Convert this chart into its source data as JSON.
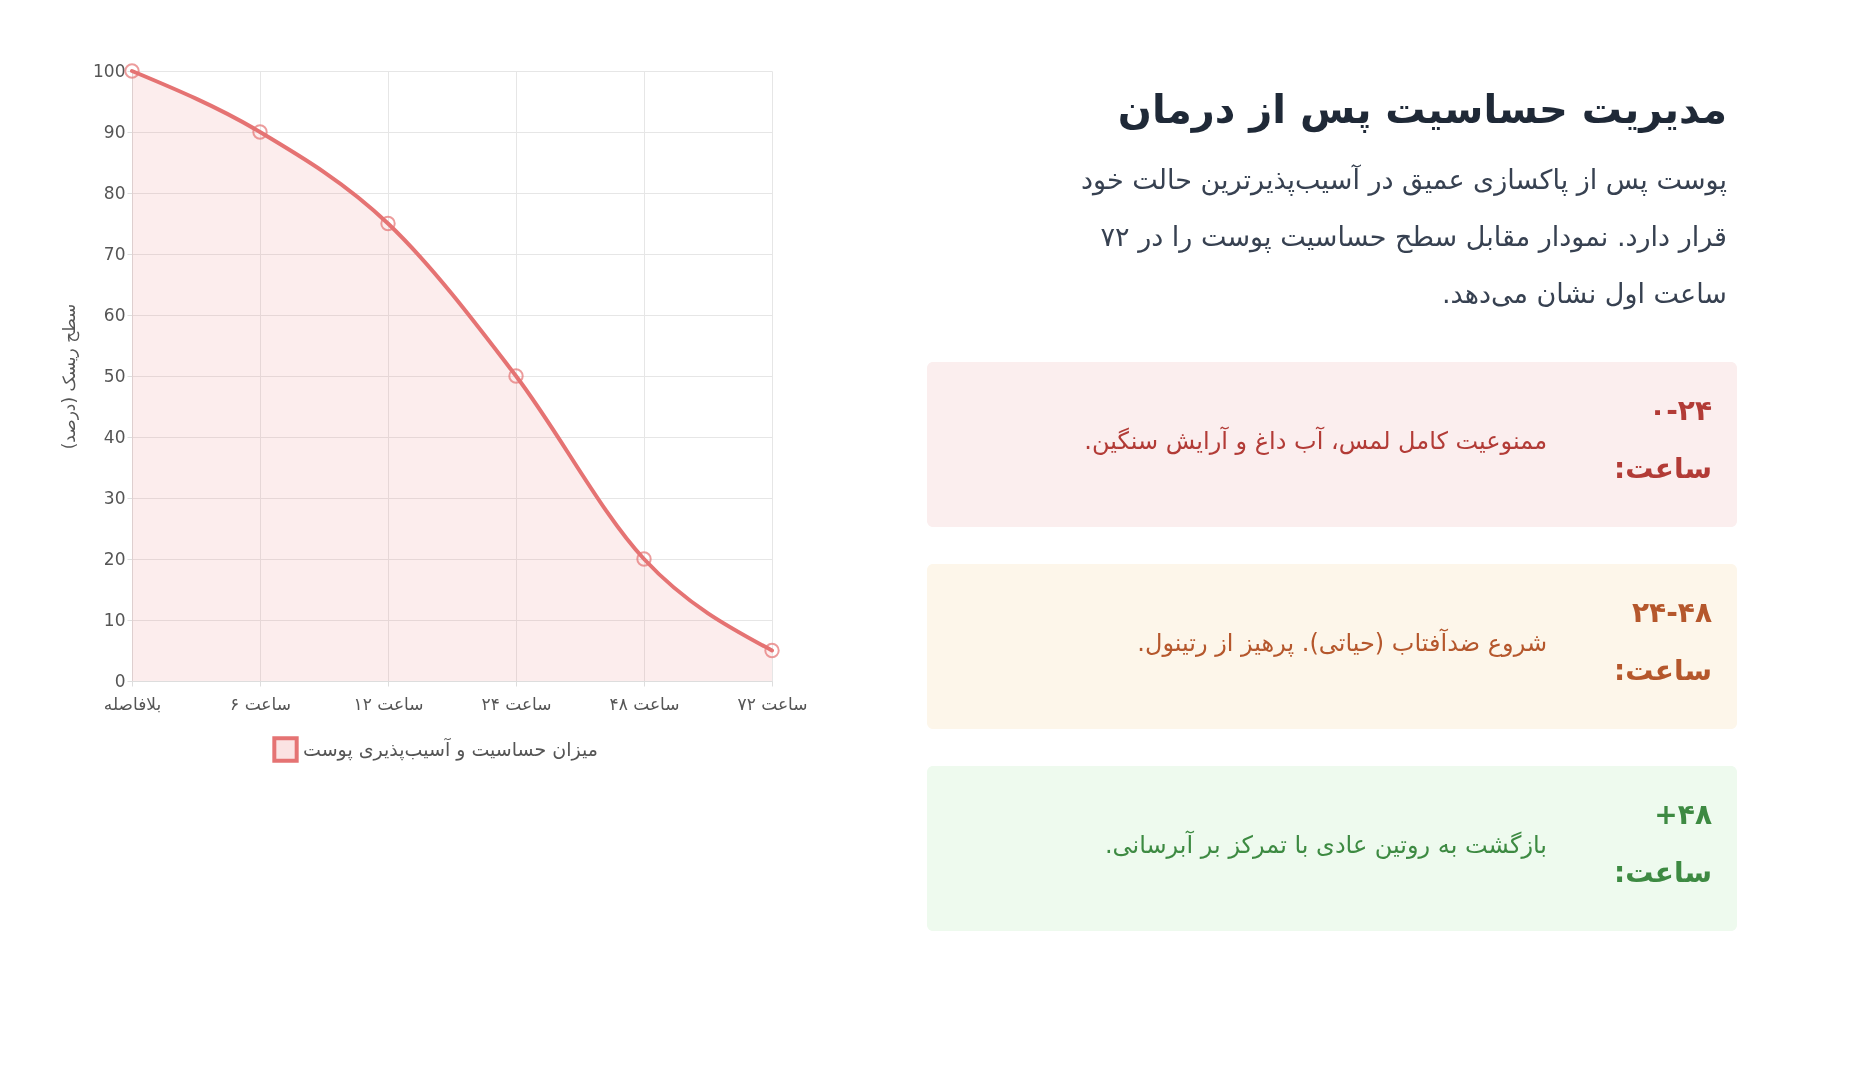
{
  "chart_data": [
    {
      "type": "area",
      "ylabel": "سطح ریسک (درصد)",
      "categories": [
        "بلافاصله",
        "۶ ساعت",
        "۱۲ ساعت",
        "۲۴ ساعت",
        "۴۸ ساعت",
        "۷۲ ساعت"
      ],
      "series": [
        {
          "name": "میزان حساسیت و آسیب‌پذیری پوست",
          "color": "#e57373",
          "values": [
            100,
            90,
            75,
            50,
            20,
            5
          ]
        }
      ],
      "ylim": [
        0,
        100
      ],
      "yticks": [
        0,
        10,
        20,
        30,
        40,
        50,
        60,
        70,
        80,
        90,
        100
      ],
      "grid": true,
      "legend": "bottom",
      "marker": "circle",
      "line_style": "solid"
    },
    {
      "type": "other",
      "title": "مدیریت حساسیت پس از درمان",
      "subtitle": "پوست پس از پاکسازی عمیق در آسیب‌پذیرترین حالت خود قرار دارد. نمودار مقابل سطح حساسیت پوست را در ۷۲ ساعت اول نشان می‌دهد.",
      "annotations": [
        "۰-۲۴ ساعت:",
        "ممنوعیت کامل لمس، آب داغ و آرایش سنگین.",
        "۲۴-۴۸ ساعت:",
        "شروع ضدآفتاب (حیاتی). پرهیز از رتینول.",
        "۴۸+ ساعت:",
        "بازگشت به روتین عادی با تمرکز بر آبرسانی."
      ]
    }
  ]
}
